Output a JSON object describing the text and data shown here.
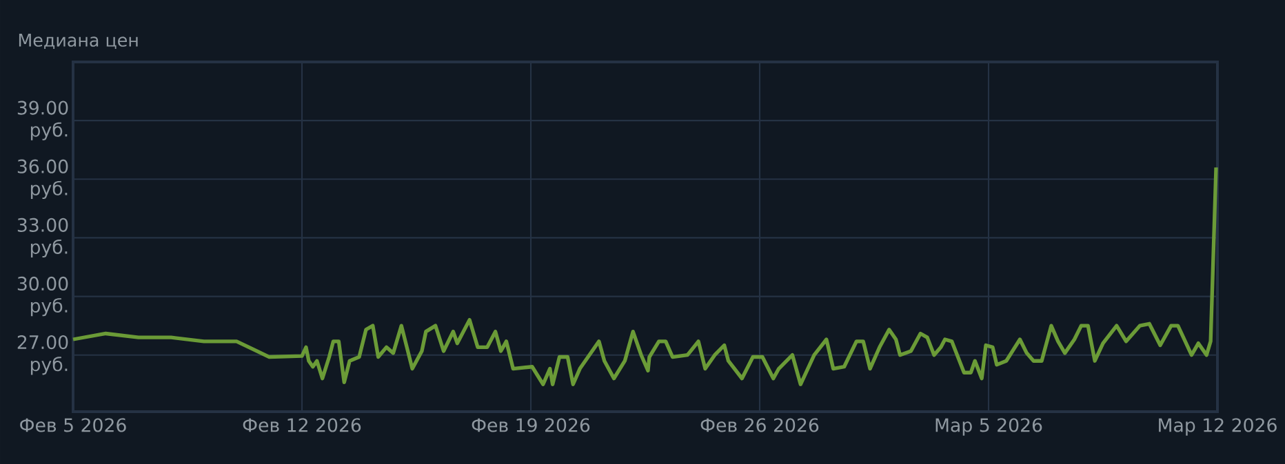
{
  "chart_data": {
    "type": "line",
    "title": "Медиана цен",
    "color": "#6b9b37",
    "grid": true,
    "xlim": [
      "2026-02-05",
      "2026-03-12"
    ],
    "xticks": [
      {
        "value": "2026-02-05",
        "label": "Фев 5 2026"
      },
      {
        "value": "2026-02-12",
        "label": "Фев 12 2026"
      },
      {
        "value": "2026-02-19",
        "label": "Фев 19 2026"
      },
      {
        "value": "2026-02-26",
        "label": "Фев 26 2026"
      },
      {
        "value": "2026-03-05",
        "label": "Мар 5 2026"
      },
      {
        "value": "2026-03-12",
        "label": "Мар 12 2026"
      }
    ],
    "ylim": [
      24.1,
      42
    ],
    "yticks": [
      {
        "value": 27,
        "label": "27.00 руб."
      },
      {
        "value": 30,
        "label": "30.00 руб."
      },
      {
        "value": 33,
        "label": "33.00 руб."
      },
      {
        "value": 36,
        "label": "36.00 руб."
      },
      {
        "value": 39,
        "label": "39.00 руб."
      }
    ],
    "x": [
      "2026-02-05",
      "2026-02-06",
      "2026-02-07",
      "2026-02-08",
      "2026-02-09",
      "2026-02-10",
      "2026-02-11",
      "2026-02-12",
      "2026-02-12T03:00",
      "2026-02-12T05:00",
      "2026-02-12T08:00",
      "2026-02-12T11:00",
      "2026-02-12T15:00",
      "2026-02-12T20:00",
      "2026-02-12T23:00",
      "2026-02-13T03:00",
      "2026-02-13T07:00",
      "2026-02-13T11:00",
      "2026-02-13T18:00",
      "2026-02-13T23:00",
      "2026-02-14T04:00",
      "2026-02-14T08:00",
      "2026-02-14T14:00",
      "2026-02-14T19:00",
      "2026-02-15T01:00",
      "2026-02-15T09:00",
      "2026-02-15T16:00",
      "2026-02-15T19:00",
      "2026-02-16T02:00",
      "2026-02-16T08:00",
      "2026-02-16T15:00",
      "2026-02-16T18:00",
      "2026-02-17T03:00",
      "2026-02-17T09:00",
      "2026-02-17T16:00",
      "2026-02-17T22:00",
      "2026-02-18T02:00",
      "2026-02-18T06:00",
      "2026-02-18T11:00",
      "2026-02-19T01:00",
      "2026-02-19T09:00",
      "2026-02-19T14:00",
      "2026-02-19T16:00",
      "2026-02-19T21:00",
      "2026-02-20T03:00",
      "2026-02-20T07:00",
      "2026-02-20T12:00",
      "2026-02-20T18:00",
      "2026-02-21T02:00",
      "2026-02-21T06:00",
      "2026-02-21T13:00",
      "2026-02-21T21:00",
      "2026-02-22T03:00",
      "2026-02-22T09:00",
      "2026-02-22T14:00",
      "2026-02-22T15:00",
      "2026-02-22T22:00",
      "2026-02-23T03:00",
      "2026-02-23T08:00",
      "2026-02-23T19:00",
      "2026-02-24T03:00",
      "2026-02-24T08:00",
      "2026-02-24T15:00",
      "2026-02-24T22:00",
      "2026-02-25T01:00",
      "2026-02-25T11:00",
      "2026-02-25T19:00",
      "2026-02-26T02:00",
      "2026-02-26T10:00",
      "2026-02-26T14:00",
      "2026-02-27T00:00",
      "2026-02-27T06:00",
      "2026-02-27T16:00",
      "2026-02-28T01:00",
      "2026-02-28T06:00",
      "2026-02-28T14:00",
      "2026-02-28T23:00",
      "2026-03-01T04:00",
      "2026-03-01T09:00",
      "2026-03-01T16:00",
      "2026-03-01T23:00",
      "2026-03-02T04:00",
      "2026-03-02T07:00",
      "2026-03-02T15:00",
      "2026-03-02T22:00",
      "2026-03-03T03:00",
      "2026-03-03T08:00",
      "2026-03-03T13:00",
      "2026-03-03T16:00",
      "2026-03-03T21:00",
      "2026-03-04T06:00",
      "2026-03-04T11:00",
      "2026-03-04T14:00",
      "2026-03-04T19:00",
      "2026-03-04T22:00",
      "2026-03-05T03:00",
      "2026-03-05T06:00",
      "2026-03-05T13:00",
      "2026-03-05T23:00",
      "2026-03-06T04:00",
      "2026-03-06T09:00",
      "2026-03-06T15:00",
      "2026-03-06T22:00",
      "2026-03-07T03:00",
      "2026-03-07T08:00",
      "2026-03-07T15:00",
      "2026-03-07T20:00",
      "2026-03-08T01:00",
      "2026-03-08T06:00",
      "2026-03-08T12:00",
      "2026-03-08T22:00",
      "2026-03-09T05:00",
      "2026-03-09T15:00",
      "2026-03-09T22:00",
      "2026-03-10T06:00",
      "2026-03-10T14:00",
      "2026-03-10T19:00",
      "2026-03-10T23:00",
      "2026-03-11T05:00",
      "2026-03-11T10:00",
      "2026-03-11T16:00",
      "2026-03-11T19:00",
      "2026-03-11T23:00"
    ],
    "values": [
      27.8,
      28.1,
      27.9,
      27.9,
      27.7,
      27.7,
      26.9,
      26.95,
      27.4,
      26.7,
      26.4,
      26.7,
      25.8,
      26.9,
      27.7,
      27.7,
      25.6,
      26.7,
      26.9,
      28.3,
      28.5,
      26.9,
      27.4,
      27.1,
      28.5,
      26.3,
      27.2,
      28.2,
      28.5,
      27.2,
      28.2,
      27.6,
      28.8,
      27.4,
      27.4,
      28.2,
      27.2,
      27.7,
      26.3,
      26.4,
      25.5,
      26.3,
      25.5,
      26.9,
      26.9,
      25.5,
      26.3,
      26.9,
      27.7,
      26.7,
      25.8,
      26.7,
      28.2,
      27.0,
      26.2,
      26.9,
      27.7,
      27.7,
      26.9,
      27.0,
      27.7,
      26.3,
      27.0,
      27.5,
      26.7,
      25.8,
      26.9,
      26.9,
      25.8,
      26.3,
      27.0,
      25.5,
      27.0,
      27.8,
      26.3,
      26.4,
      27.7,
      27.7,
      26.3,
      27.4,
      28.3,
      27.8,
      27.0,
      27.2,
      28.1,
      27.9,
      27.0,
      27.4,
      27.8,
      27.7,
      26.1,
      26.1,
      26.7,
      25.8,
      27.5,
      27.4,
      26.5,
      26.7,
      27.8,
      27.1,
      26.7,
      26.7,
      28.5,
      27.7,
      27.1,
      27.8,
      28.5,
      28.5,
      26.7,
      27.6,
      28.5,
      27.7,
      28.5,
      28.6,
      27.5,
      28.5,
      28.5,
      27.9,
      27.0,
      27.6,
      27.0,
      27.7,
      36.6
    ]
  }
}
